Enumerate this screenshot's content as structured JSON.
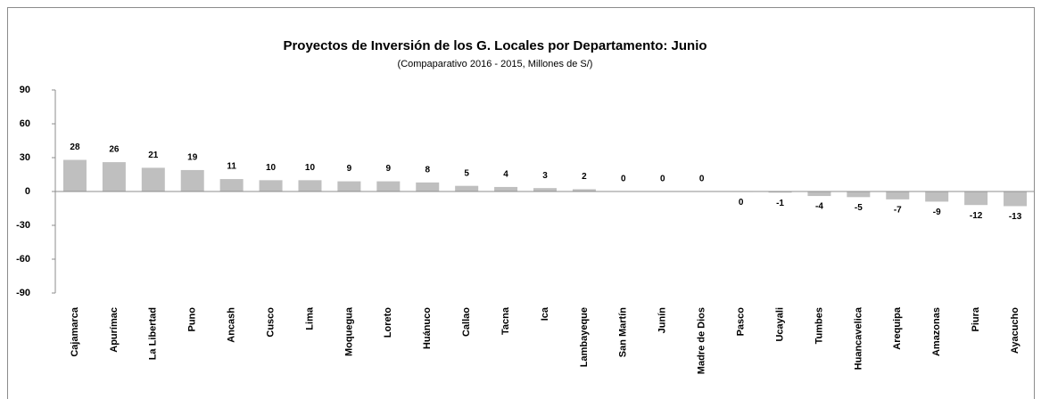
{
  "chart_data": {
    "type": "bar",
    "title": "Proyectos de Inversión de los G. Locales por Departamento:  Junio",
    "subtitle": "(Compaparativo 2016 - 2015, Millones de S/)",
    "categories": [
      "Cajamarca",
      "Apurímac",
      "La Libertad",
      "Puno",
      "Ancash",
      "Cusco",
      "Lima",
      "Moquegua",
      "Loreto",
      "Huánuco",
      "Callao",
      "Tacna",
      "Ica",
      "Lambayeque",
      "San Martín",
      "Junín",
      "Madre de Dios",
      "Pasco",
      "Ucayali",
      "Tumbes",
      "Huancavelica",
      "Arequipa",
      "Amazonas",
      "Piura",
      "Ayacucho"
    ],
    "values": [
      28,
      26,
      21,
      19,
      11,
      10,
      10,
      9,
      9,
      8,
      5,
      4,
      3,
      2,
      0,
      0,
      0,
      -0.4,
      -1,
      -4,
      -5,
      -7,
      -9,
      -12,
      -13
    ],
    "value_labels": [
      "28",
      "26",
      "21",
      "19",
      "11",
      "10",
      "10",
      "9",
      "9",
      "8",
      "5",
      "4",
      "3",
      "2",
      "0",
      "0",
      "0",
      "0",
      "-1",
      "-4",
      "-5",
      "-7",
      "-9",
      "-12",
      "-13"
    ],
    "color": "#bfbfbf",
    "ylim": [
      -90,
      90
    ],
    "yticks": [
      90,
      60,
      30,
      0,
      -30,
      -60,
      -90
    ],
    "grid": false
  }
}
